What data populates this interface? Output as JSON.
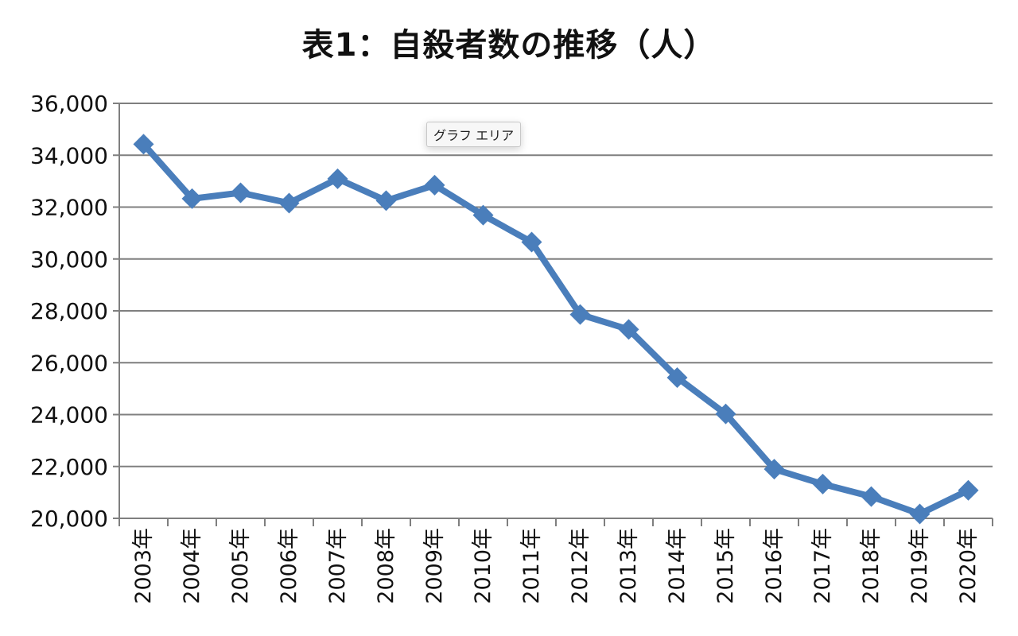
{
  "title": "表1：自殺者数の推移（人）",
  "tooltip": "グラフ エリア",
  "colors": {
    "line": "#4a7ebb",
    "grid": "#7f7f7f",
    "text": "#111111"
  },
  "chart_data": {
    "type": "line",
    "title": "表1：自殺者数の推移（人）",
    "xlabel": "",
    "ylabel": "",
    "ylim": [
      20000,
      36000
    ],
    "y_ticks": [
      20000,
      22000,
      24000,
      26000,
      28000,
      30000,
      32000,
      34000,
      36000
    ],
    "y_tick_labels": [
      "20,000",
      "22,000",
      "24,000",
      "26,000",
      "28,000",
      "30,000",
      "32,000",
      "34,000",
      "36,000"
    ],
    "grid": true,
    "legend": "none",
    "marker": "diamond",
    "categories": [
      "2003年",
      "2004年",
      "2005年",
      "2006年",
      "2007年",
      "2008年",
      "2009年",
      "2010年",
      "2011年",
      "2012年",
      "2013年",
      "2014年",
      "2015年",
      "2016年",
      "2017年",
      "2018年",
      "2019年",
      "2020年"
    ],
    "series": [
      {
        "values": [
          34427,
          32325,
          32552,
          32155,
          33093,
          32249,
          32845,
          31690,
          30651,
          27858,
          27283,
          25427,
          24025,
          21897,
          21321,
          20840,
          20169,
          21081
        ]
      }
    ]
  }
}
